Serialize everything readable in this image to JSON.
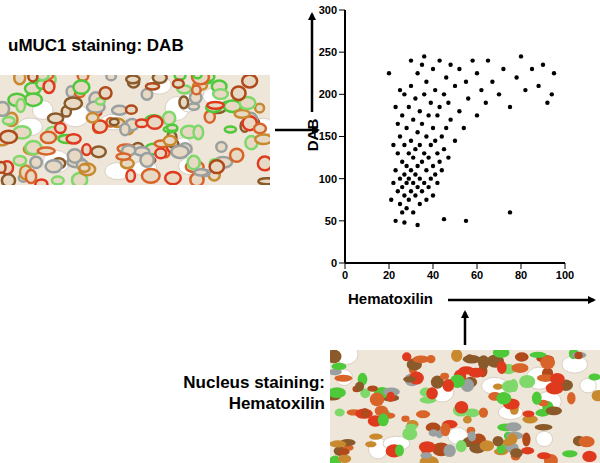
{
  "chart_data": {
    "type": "scatter",
    "x_label": "Hematoxilin",
    "y_label": "DAB",
    "annotations": [
      "uMUC1 staining: DAB",
      "Nucleus staining: Hematoxilin"
    ],
    "x": [
      22,
      23,
      24,
      24,
      25,
      25,
      25,
      26,
      26,
      26,
      27,
      27,
      27,
      27,
      28,
      28,
      28,
      28,
      29,
      29,
      29,
      29,
      30,
      30,
      30,
      30,
      31,
      31,
      31,
      31,
      32,
      32,
      32,
      32,
      33,
      33,
      33,
      33,
      34,
      34,
      34,
      34,
      35,
      35,
      35,
      35,
      36,
      36,
      36,
      37,
      37,
      37,
      37,
      38,
      38,
      38,
      39,
      39,
      39,
      40,
      40,
      40,
      40,
      41,
      41,
      41,
      42,
      42,
      42,
      43,
      43,
      43,
      44,
      44,
      45,
      45,
      46,
      46,
      47,
      47,
      48,
      48,
      50,
      50,
      52,
      52,
      54,
      55,
      56,
      58,
      60,
      60,
      62,
      64,
      65,
      67,
      70,
      72,
      75,
      75,
      78,
      80,
      82,
      85,
      88,
      90,
      92,
      94,
      95,
      20,
      23,
      27,
      33,
      45,
      55,
      30,
      36,
      26,
      21,
      22,
      24,
      23,
      25
    ],
    "values": [
      95,
      110,
      85,
      130,
      70,
      100,
      150,
      90,
      120,
      175,
      80,
      105,
      140,
      200,
      65,
      95,
      115,
      160,
      75,
      100,
      130,
      185,
      85,
      110,
      145,
      210,
      60,
      95,
      125,
      170,
      80,
      105,
      135,
      195,
      90,
      115,
      155,
      225,
      70,
      100,
      140,
      180,
      85,
      120,
      165,
      235,
      95,
      130,
      200,
      75,
      110,
      150,
      215,
      90,
      125,
      175,
      100,
      140,
      190,
      80,
      115,
      160,
      230,
      105,
      145,
      205,
      95,
      130,
      175,
      120,
      185,
      240,
      110,
      150,
      135,
      200,
      160,
      220,
      125,
      190,
      170,
      235,
      145,
      210,
      180,
      230,
      160,
      215,
      195,
      240,
      175,
      225,
      205,
      190,
      240,
      215,
      200,
      230,
      185,
      60,
      220,
      245,
      205,
      230,
      210,
      235,
      190,
      200,
      225,
      225,
      50,
      48,
      45,
      52,
      50,
      240,
      245,
      60,
      75,
      140,
      165,
      185,
      205
    ],
    "color": "#000000",
    "marker": "circle",
    "xlim": [
      0,
      100
    ],
    "xticks": [
      0,
      20,
      40,
      60,
      80,
      100
    ],
    "ylim": [
      0,
      300
    ],
    "yticks": [
      0,
      50,
      100,
      150,
      200,
      250,
      300
    ],
    "grid": false
  }
}
